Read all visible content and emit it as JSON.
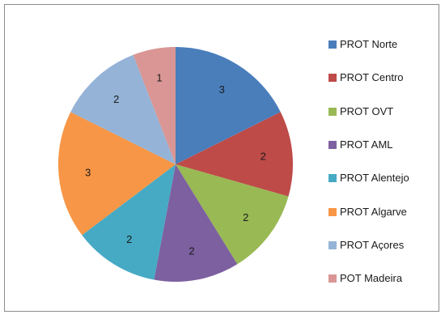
{
  "chart_data": {
    "type": "pie",
    "categories": [
      "PROT Norte",
      "PROT Centro",
      "PROT OVT",
      "PROT AML",
      "PROT Alentejo",
      "PROT Algarve",
      "PROT Açores",
      "POT Madeira"
    ],
    "values": [
      3,
      2,
      2,
      2,
      2,
      3,
      2,
      1
    ],
    "colors": [
      "#4a7ebb",
      "#be4b48",
      "#98b954",
      "#7d60a0",
      "#46aac5",
      "#f79646",
      "#95b3d7",
      "#d99694"
    ],
    "legend_position": "right",
    "data_labels": true
  }
}
